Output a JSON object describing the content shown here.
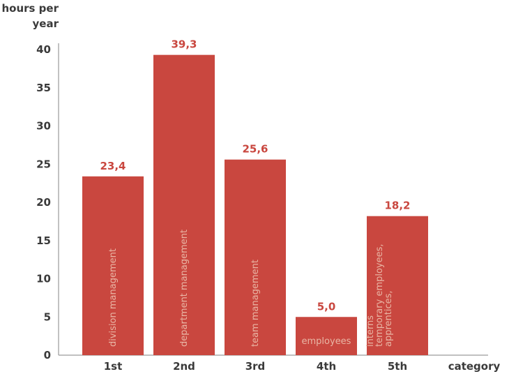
{
  "chart_data": {
    "type": "bar",
    "ylabel": "hours per year",
    "ylabel_lines": [
      "hours per",
      "year"
    ],
    "xlabel": "category",
    "categories": [
      "1st",
      "2nd",
      "3rd",
      "4th",
      "5th"
    ],
    "values": [
      23.4,
      39.3,
      25.6,
      5.0,
      18.2
    ],
    "value_labels": [
      "23,4",
      "39,3",
      "25,6",
      "5,0",
      "18,2"
    ],
    "bar_labels": [
      [
        "division management"
      ],
      [
        "department management"
      ],
      [
        "team management"
      ],
      [
        "employees"
      ],
      [
        "apprentices,",
        "temporary employees,",
        "interns"
      ]
    ],
    "yticks": [
      0,
      5,
      10,
      15,
      20,
      25,
      30,
      35,
      40
    ],
    "ylim": [
      0,
      40
    ],
    "grid": false,
    "legend": "none",
    "colors": {
      "bar": "#c9473f",
      "value_label": "#c9473f",
      "inbar_label": "#e9b6a5",
      "axis": "#9a9a9a",
      "text": "#3a3a3a"
    }
  }
}
